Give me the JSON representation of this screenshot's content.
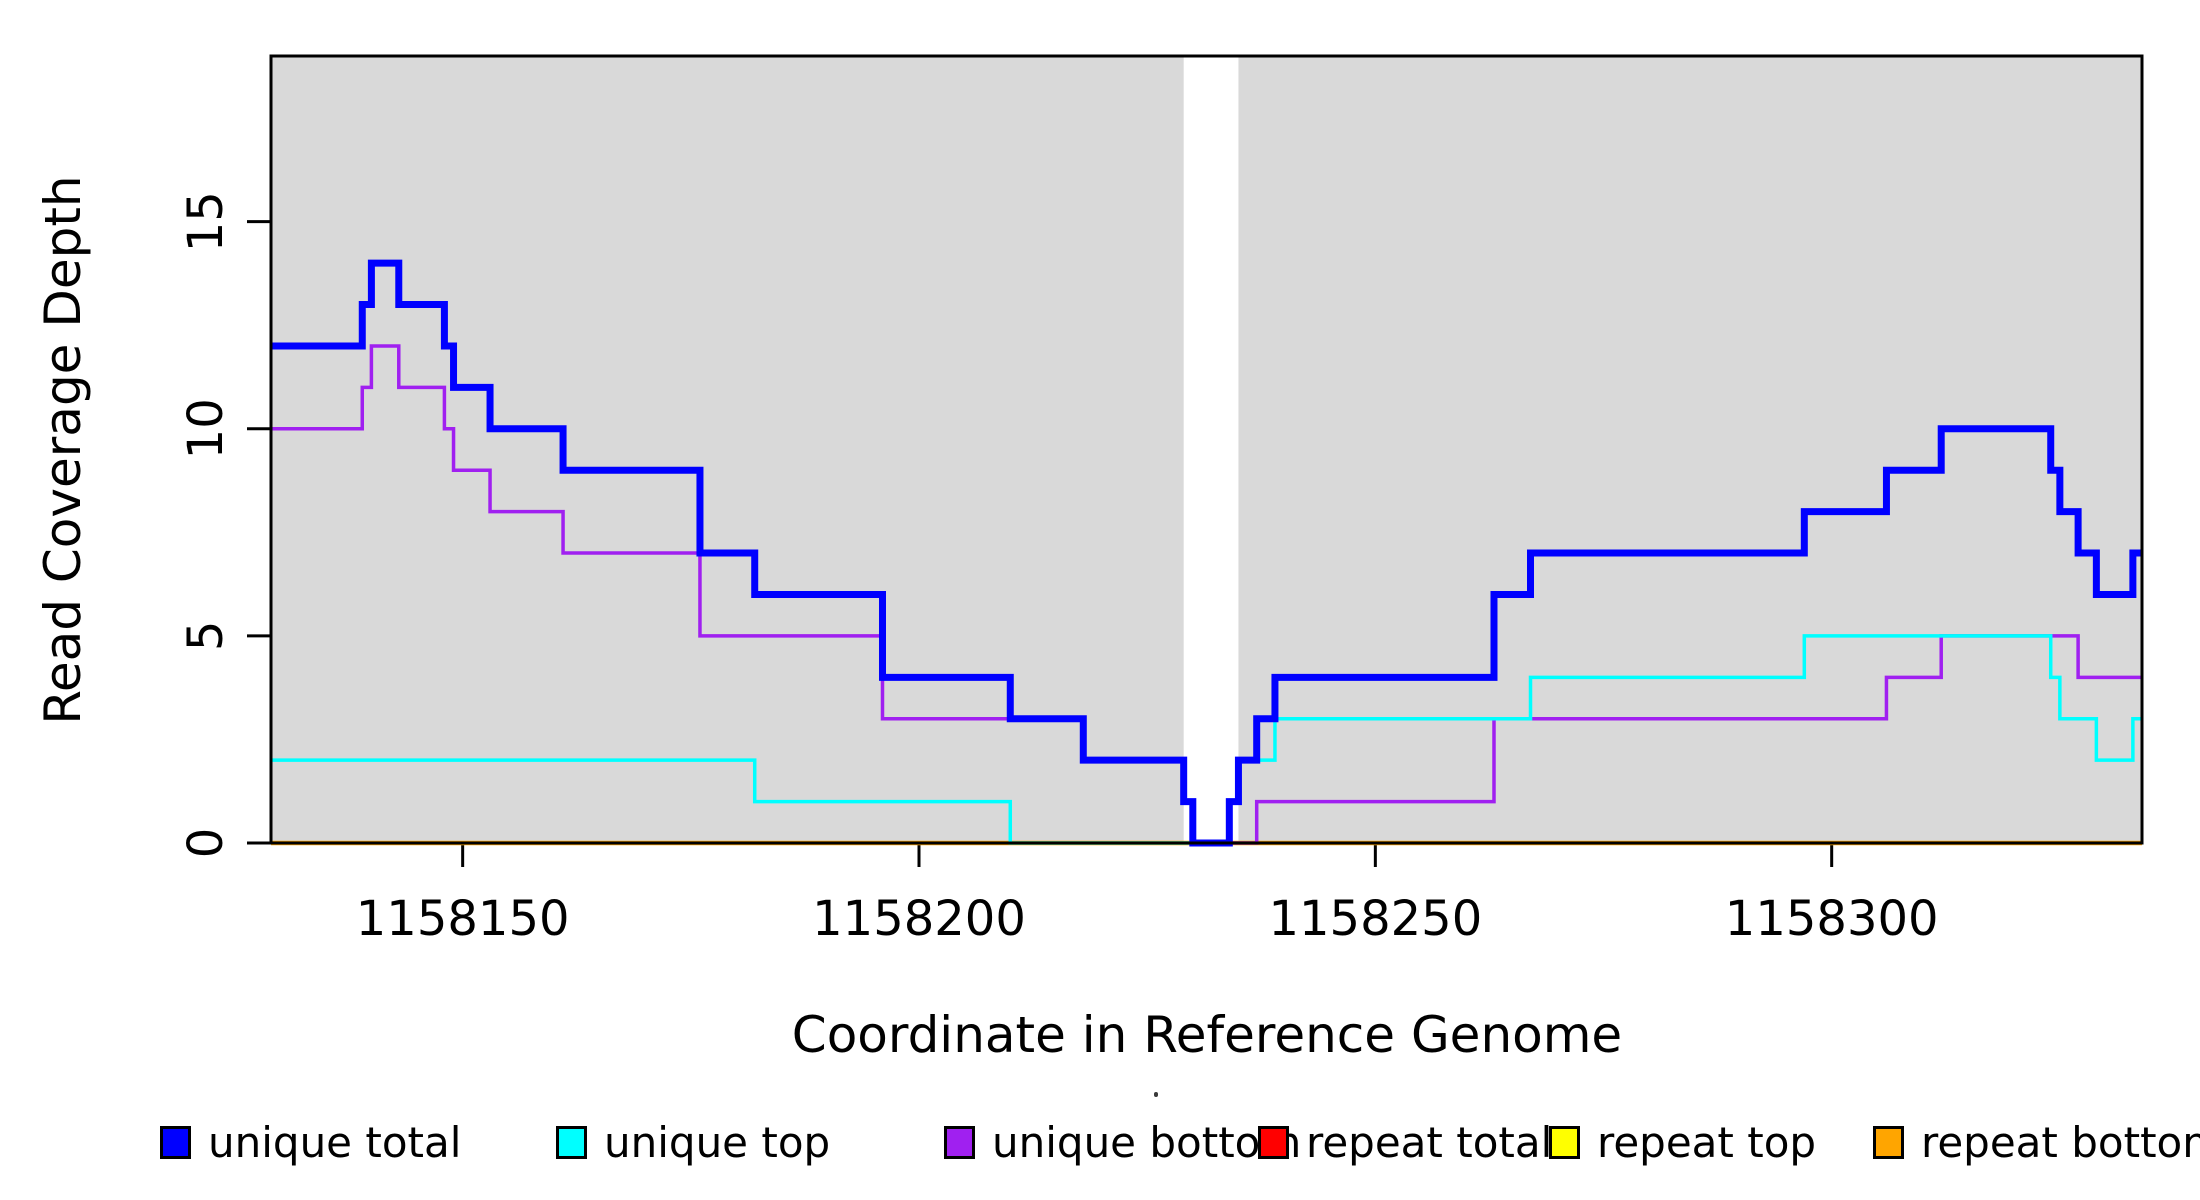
{
  "figure": {
    "background": "#FFFFFF",
    "plot_background": "#D9D9D9",
    "masked_band_color": "#FFFFFF",
    "border_color": "#000000"
  },
  "axes": {
    "x": {
      "label": "Coordinate in Reference Genome",
      "range": [
        1158129,
        1158334
      ],
      "ticks": [
        {
          "value": 1158150,
          "label": "1158150"
        },
        {
          "value": 1158200,
          "label": "1158200"
        },
        {
          "value": 1158250,
          "label": "1158250"
        },
        {
          "value": 1158300,
          "label": "1158300"
        }
      ]
    },
    "y": {
      "label": "Read Coverage Depth",
      "range": [
        0,
        19
      ],
      "ticks": [
        {
          "value": 0,
          "label": "0"
        },
        {
          "value": 5,
          "label": "5"
        },
        {
          "value": 10,
          "label": "10"
        },
        {
          "value": 15,
          "label": "15"
        }
      ]
    }
  },
  "legend": {
    "items": [
      {
        "label": "unique total",
        "color": "#0000FF"
      },
      {
        "label": "unique top",
        "color": "#00FFFF"
      },
      {
        "label": "unique bottom",
        "color": "#A020F0"
      },
      {
        "label": "repeat total",
        "color": "#FF0000"
      },
      {
        "label": "repeat top",
        "color": "#FFFF00"
      },
      {
        "label": "repeat bottom",
        "color": "#FFA500"
      }
    ]
  },
  "chart_data": {
    "type": "line",
    "subtype": "step-after",
    "title": "",
    "xlabel": "Coordinate in Reference Genome",
    "ylabel": "Read Coverage Depth",
    "xlim": [
      1158129,
      1158334
    ],
    "ylim": [
      0,
      19
    ],
    "grid": false,
    "legend_position": "bottom",
    "shaded_region_color": "#D9D9D9",
    "masked_region": [
      1158229,
      1158235
    ],
    "x_end": 1158334,
    "series": [
      {
        "name": "repeat total",
        "color": "#FF0000",
        "line_width": 3.5,
        "steps": [
          [
            1158129,
            0
          ]
        ]
      },
      {
        "name": "repeat top",
        "color": "#FFFF00",
        "line_width": 3.5,
        "steps": [
          [
            1158129,
            0
          ]
        ]
      },
      {
        "name": "repeat bottom",
        "color": "#FFA500",
        "line_width": 4.5,
        "steps": [
          [
            1158129,
            0
          ]
        ]
      },
      {
        "name": "unique bottom",
        "color": "#A020F0",
        "line_width": 3.5,
        "steps": [
          [
            1158129,
            10
          ],
          [
            1158139,
            11
          ],
          [
            1158140,
            12
          ],
          [
            1158143,
            11
          ],
          [
            1158148,
            10
          ],
          [
            1158149,
            9
          ],
          [
            1158153,
            8
          ],
          [
            1158161,
            7
          ],
          [
            1158176,
            5
          ],
          [
            1158196,
            3
          ],
          [
            1158218,
            2
          ],
          [
            1158229,
            1
          ],
          [
            1158230,
            0
          ],
          [
            1158237,
            1
          ],
          [
            1158263,
            3
          ],
          [
            1158306,
            4
          ],
          [
            1158312,
            5
          ],
          [
            1158327,
            4
          ]
        ]
      },
      {
        "name": "unique top",
        "color": "#00FFFF",
        "line_width": 3.5,
        "steps": [
          [
            1158129,
            2
          ],
          [
            1158182,
            1
          ],
          [
            1158210,
            0
          ],
          [
            1158234,
            1
          ],
          [
            1158235,
            2
          ],
          [
            1158239,
            3
          ],
          [
            1158267,
            4
          ],
          [
            1158297,
            5
          ],
          [
            1158324,
            4
          ],
          [
            1158325,
            3
          ],
          [
            1158329,
            2
          ],
          [
            1158333,
            3
          ]
        ]
      },
      {
        "name": "unique total",
        "color": "#0000FF",
        "line_width": 7,
        "steps": [
          [
            1158129,
            12
          ],
          [
            1158139,
            13
          ],
          [
            1158140,
            14
          ],
          [
            1158143,
            13
          ],
          [
            1158148,
            12
          ],
          [
            1158149,
            11
          ],
          [
            1158153,
            10
          ],
          [
            1158161,
            9
          ],
          [
            1158176,
            7
          ],
          [
            1158182,
            6
          ],
          [
            1158196,
            4
          ],
          [
            1158210,
            3
          ],
          [
            1158218,
            2
          ],
          [
            1158229,
            1
          ],
          [
            1158230,
            0
          ],
          [
            1158234,
            1
          ],
          [
            1158235,
            2
          ],
          [
            1158237,
            3
          ],
          [
            1158239,
            4
          ],
          [
            1158263,
            6
          ],
          [
            1158267,
            7
          ],
          [
            1158297,
            8
          ],
          [
            1158306,
            9
          ],
          [
            1158312,
            10
          ],
          [
            1158324,
            9
          ],
          [
            1158325,
            8
          ],
          [
            1158327,
            7
          ],
          [
            1158329,
            6
          ],
          [
            1158333,
            7
          ]
        ]
      }
    ]
  }
}
